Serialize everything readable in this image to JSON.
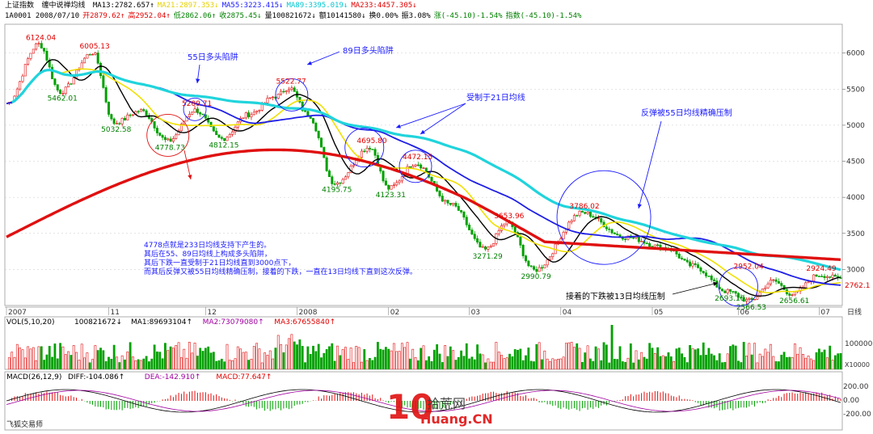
{
  "header": {
    "index_name": "上证指数",
    "indicator_name": "缠中说禅均线",
    "ma_values": [
      {
        "label": "MA13:2782.657↑",
        "color": "#000000"
      },
      {
        "label": "MA21:2897.353↓",
        "color": "#e6d200"
      },
      {
        "label": "MA55:3223.415↓",
        "color": "#1a1aff"
      },
      {
        "label": "MA89:3395.019↓",
        "color": "#00c8d2"
      },
      {
        "label": "MA233:4457.305↓",
        "color": "#e00000"
      }
    ],
    "ohlc_line": [
      {
        "label": "1A0001 2008/07/10",
        "color": "#000000"
      },
      {
        "label": "开2879.62↑",
        "color": "#e00000"
      },
      {
        "label": "高2952.04↑",
        "color": "#e00000"
      },
      {
        "label": "低2862.06↑",
        "color": "#008000"
      },
      {
        "label": "收2875.45↓",
        "color": "#008000"
      },
      {
        "label": "量100821672↓",
        "color": "#000000"
      },
      {
        "label": "额10141580↓",
        "color": "#000000"
      },
      {
        "label": "换0.00%",
        "color": "#000000"
      },
      {
        "label": "振3.08%",
        "color": "#000000"
      },
      {
        "label": "涨(-45.10)-1.54%",
        "color": "#008000"
      },
      {
        "label": "指数(-45.10)-1.54%",
        "color": "#008000"
      }
    ]
  },
  "chart_data": {
    "type": "line",
    "series": [
      {
        "name": "MA13",
        "color": "#000000"
      },
      {
        "name": "MA21",
        "color": "#f0e000"
      },
      {
        "name": "MA55",
        "color": "#1e1ee6"
      },
      {
        "name": "MA89",
        "color": "#20d4dc"
      },
      {
        "name": "MA233",
        "color": "#e01010"
      }
    ],
    "y_ticks": [
      "6000",
      "5500",
      "5000",
      "4500",
      "4000",
      "3500",
      "3000"
    ],
    "ylim": [
      2500,
      6400
    ],
    "last_price": "2762.1",
    "x_ticks": [
      "2007",
      "11",
      "12",
      "2008",
      "02",
      "03",
      "04",
      "05",
      "06",
      "07"
    ],
    "x_axis_label": "日线",
    "price_labels": [
      {
        "t": 12,
        "v": 6124.04,
        "text": "6124.04",
        "color": "#e00000"
      },
      {
        "t": 32,
        "v": 6005.13,
        "text": "6005.13",
        "color": "#e00000"
      },
      {
        "t": 20,
        "v": 5462.01,
        "text": "5462.01",
        "color": "#008000"
      },
      {
        "t": 40,
        "v": 5032.58,
        "text": "5032.58",
        "color": "#008000"
      },
      {
        "t": 60,
        "v": 4778.73,
        "text": "4778.73",
        "color": "#008000"
      },
      {
        "t": 70,
        "v": 5209.71,
        "text": "5209.71",
        "color": "#e00000"
      },
      {
        "t": 80,
        "v": 4812.15,
        "text": "4812.15",
        "color": "#008000"
      },
      {
        "t": 105,
        "v": 5522.77,
        "text": "5522.77",
        "color": "#e00000"
      },
      {
        "t": 122,
        "v": 4195.75,
        "text": "4195.75",
        "color": "#008000"
      },
      {
        "t": 135,
        "v": 4695.8,
        "text": "4695.80",
        "color": "#e00000"
      },
      {
        "t": 142,
        "v": 4123.31,
        "text": "4123.31",
        "color": "#008000"
      },
      {
        "t": 152,
        "v": 4472.15,
        "text": "4472.15",
        "color": "#e00000"
      },
      {
        "t": 178,
        "v": 3271.29,
        "text": "3271.29",
        "color": "#008000"
      },
      {
        "t": 186,
        "v": 3653.96,
        "text": "3653.96",
        "color": "#e00000"
      },
      {
        "t": 196,
        "v": 2990.79,
        "text": "2990.79",
        "color": "#008000"
      },
      {
        "t": 214,
        "v": 3786.02,
        "text": "3786.02",
        "color": "#e00000"
      },
      {
        "t": 268,
        "v": 2693.1,
        "text": "2693.10",
        "color": "#008000"
      },
      {
        "t": 275,
        "v": 2952.04,
        "text": "2952.04",
        "color": "#e00000"
      },
      {
        "t": 276,
        "v": 2566.53,
        "text": "2566.53",
        "color": "#008000"
      },
      {
        "t": 292,
        "v": 2656.61,
        "text": "2656.61",
        "color": "#008000"
      },
      {
        "t": 302,
        "v": 2924.49,
        "text": "2924.49",
        "color": "#e00000"
      }
    ],
    "annotations": [
      {
        "text": "55日多头陷阱",
        "color": "#1a1aff"
      },
      {
        "text": "89日多头陷阱",
        "color": "#1a1aff"
      },
      {
        "text": "受制于21日均线",
        "color": "#1a1aff"
      },
      {
        "text": "反弹被55日均线精确压制",
        "color": "#1a1aff"
      },
      {
        "text": "接着的下跌被13日均线压制",
        "color": "#000000"
      }
    ],
    "explanation": [
      "4778点就是233日均线支持下产生的。",
      "其后在55、89日均线上构成多头陷阱，",
      "其后下跌一直受制于21日均线直到3000点下，",
      "而其后反弹又被55日均线精确压制，接着的下跌，一直在13日均线下直到这次反弹。"
    ]
  },
  "volume": {
    "label": "VOL(5,10,20)",
    "values": [
      {
        "label": "100821672↓",
        "color": "#000000"
      },
      {
        "label": "MA1:89693104↑",
        "color": "#000000"
      },
      {
        "label": "MA2:73079080↑",
        "color": "#a000a0"
      },
      {
        "label": "MA3:67655840↑",
        "color": "#e00000"
      }
    ],
    "y_ticks": [
      "100000"
    ],
    "unit": "X10000"
  },
  "macd": {
    "label": "MACD(26,12,9)",
    "values": [
      {
        "label": "DIFF:-104.086↑",
        "color": "#000000"
      },
      {
        "label": "DEA:-142.910↑",
        "color": "#a000a0"
      },
      {
        "label": "MACD:77.647↑",
        "color": "#e00000"
      }
    ],
    "y_ticks": [
      "200.00",
      "0.00",
      "-200.00"
    ]
  },
  "watermark": {
    "cn": "拾荒网",
    "en": "Huang.CN",
    "number": "10"
  },
  "footer_text": "飞狐交易师"
}
